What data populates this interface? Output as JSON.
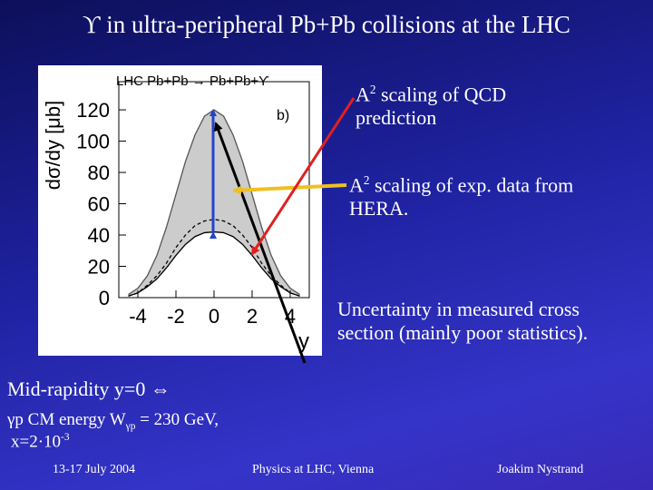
{
  "title": "ϒ in ultra-peripheral Pb+Pb collisions at the LHC",
  "annotations": [
    {
      "base": "A",
      "sup": "2",
      "text": "scaling of QCD prediction"
    },
    {
      "base": "A",
      "sup": "2",
      "text": "scaling of exp. data from HERA."
    },
    {
      "text": "Uncertainty in measured cross section (mainly poor statistics)."
    }
  ],
  "notes": {
    "midrapidity": "Mid-rapidity y=0 ⇔",
    "energy": {
      "pre": "γp CM energy W",
      "sub": "γp",
      "post": " = 230 GeV,"
    },
    "bjorken": {
      "pre": "x=2·10",
      "sup": "-3"
    }
  },
  "footer": {
    "date": "13-17 July 2004",
    "event": "Physics at LHC, Vienna",
    "author": "Joakim Nystrand"
  },
  "figure": {
    "type": "line",
    "legend": "LHC Pb+Pb → Pb+Pb+ϒ",
    "panel": "b)",
    "xlabel": "y",
    "ylabel": "dσ/dy [μb]",
    "x": [
      -4.5,
      -4,
      -3.5,
      -3,
      -2.5,
      -2,
      -1.5,
      -1,
      -0.5,
      0,
      0.5,
      1,
      1.5,
      2,
      2.5,
      3,
      3.5,
      4,
      4.5
    ],
    "series": [
      {
        "color": "#555555",
        "values": [
          2,
          6,
          14,
          27,
          45,
          66,
          87,
          104,
          116,
          120,
          116,
          104,
          87,
          66,
          45,
          27,
          14,
          6,
          2
        ]
      },
      {
        "color": "#000000",
        "values": [
          1,
          3,
          7,
          12,
          19,
          27,
          34,
          39,
          41.5,
          42,
          41.5,
          39,
          34,
          27,
          19,
          12,
          7,
          3,
          1
        ]
      },
      {
        "color": "#000000",
        "dash": true,
        "values": [
          1,
          3,
          8,
          14,
          22,
          32,
          40,
          46,
          49,
          50,
          49,
          46,
          40,
          32,
          22,
          14,
          8,
          3,
          1
        ]
      }
    ],
    "band_color": "#cccccc",
    "xlim": [
      -5,
      5
    ],
    "ylim": [
      0,
      138
    ],
    "xticks": [
      -4,
      -2,
      0,
      2,
      4
    ],
    "yticks": [
      0,
      20,
      40,
      60,
      80,
      100,
      120
    ]
  }
}
